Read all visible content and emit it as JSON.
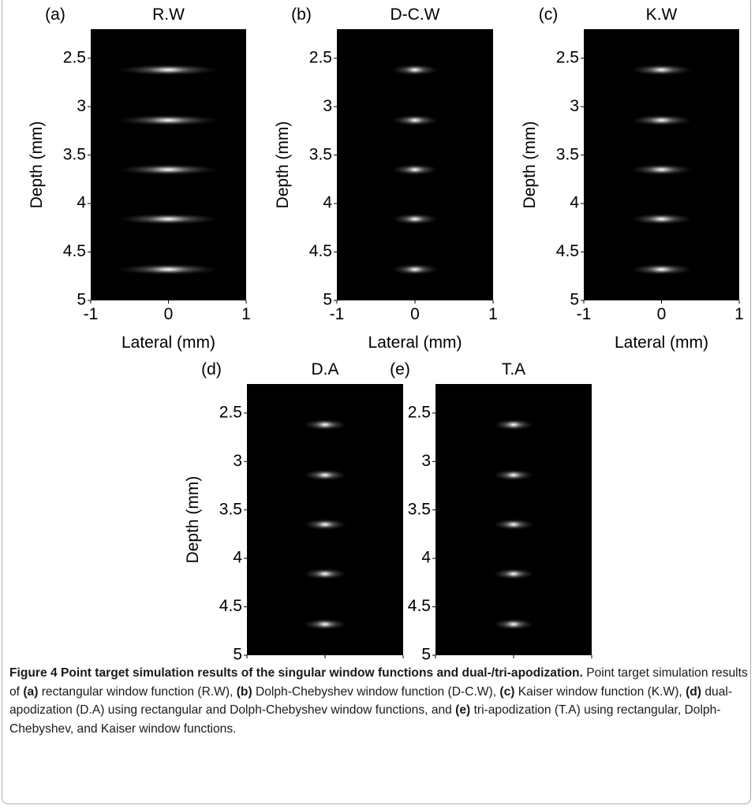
{
  "chart_data": [
    {
      "type": "point_target",
      "label": "(a)",
      "title": "R.W",
      "xlabel": "Lateral (mm)",
      "ylabel": "Depth (mm)",
      "xlim": [
        -1,
        1
      ],
      "ylim": [
        2.2,
        5
      ],
      "xticks": [
        -1,
        0,
        1
      ],
      "yticks": [
        2.5,
        3,
        3.5,
        4,
        4.5,
        5
      ],
      "x": [
        0,
        0,
        0,
        0,
        0
      ],
      "values": [
        2.62,
        3.14,
        3.65,
        4.16,
        4.68
      ],
      "spread": 0.65
    },
    {
      "type": "point_target",
      "label": "(b)",
      "title": "D-C.W",
      "xlabel": "Lateral (mm)",
      "ylabel": "Depth (mm)",
      "xlim": [
        -1,
        1
      ],
      "ylim": [
        2.2,
        5
      ],
      "xticks": [
        -1,
        0,
        1
      ],
      "yticks": [
        2.5,
        3,
        3.5,
        4,
        4.5,
        5
      ],
      "x": [
        0,
        0,
        0,
        0,
        0
      ],
      "values": [
        2.62,
        3.14,
        3.65,
        4.16,
        4.68
      ],
      "spread": 0.3
    },
    {
      "type": "point_target",
      "label": "(c)",
      "title": "K.W",
      "xlabel": "Lateral (mm)",
      "ylabel": "Depth (mm)",
      "xlim": [
        -1,
        1
      ],
      "ylim": [
        2.2,
        5
      ],
      "xticks": [
        -1,
        0,
        1
      ],
      "yticks": [
        2.5,
        3,
        3.5,
        4,
        4.5,
        5
      ],
      "x": [
        0,
        0,
        0,
        0,
        0
      ],
      "values": [
        2.62,
        3.14,
        3.65,
        4.16,
        4.68
      ],
      "spread": 0.4
    },
    {
      "type": "point_target",
      "label": "(d)",
      "title": "D.A",
      "xlabel": "Lateral (mm)",
      "ylabel": "Depth (mm)",
      "xlim": [
        -1,
        1
      ],
      "ylim": [
        2.2,
        5
      ],
      "xticks": [
        -1,
        0,
        1
      ],
      "yticks": [
        2.5,
        3,
        3.5,
        4,
        4.5,
        5
      ],
      "x": [
        0,
        0,
        0,
        0,
        0
      ],
      "values": [
        2.62,
        3.14,
        3.65,
        4.16,
        4.68
      ],
      "spread": 0.28
    },
    {
      "type": "point_target",
      "label": "(e)",
      "title": "T.A",
      "xlabel": "Lateral (mm)",
      "ylabel": "Depth (mm)",
      "xlim": [
        -1,
        1
      ],
      "ylim": [
        2.2,
        5
      ],
      "xticks": [
        -1,
        0,
        1
      ],
      "yticks": [
        2.5,
        3,
        3.5,
        4,
        4.5,
        5
      ],
      "x": [
        0,
        0,
        0,
        0,
        0
      ],
      "values": [
        2.62,
        3.14,
        3.65,
        4.16,
        4.68
      ],
      "spread": 0.26
    }
  ],
  "caption": {
    "title": "Figure 4 Point target simulation results of the singular window functions and dual-/tri-apodization.",
    "body": [
      {
        "text": "Point target simulation results of "
      },
      {
        "text": "(a)",
        "bold": true
      },
      {
        "text": " rectangular window function (R.W), "
      },
      {
        "text": "(b)",
        "bold": true
      },
      {
        "text": " Dolph-Chebyshev window function (D-C.W), "
      },
      {
        "text": "(c)",
        "bold": true
      },
      {
        "text": " Kaiser window function (K.W), "
      },
      {
        "text": "(d)",
        "bold": true
      },
      {
        "text": " dual-apodization (D.A) using rectangular and Dolph-Chebyshev window functions, and "
      },
      {
        "text": "(e)",
        "bold": true
      },
      {
        "text": " tri-apodization (T.A) using rectangular, Dolph-Chebyshev, and Kaiser window functions."
      }
    ]
  }
}
